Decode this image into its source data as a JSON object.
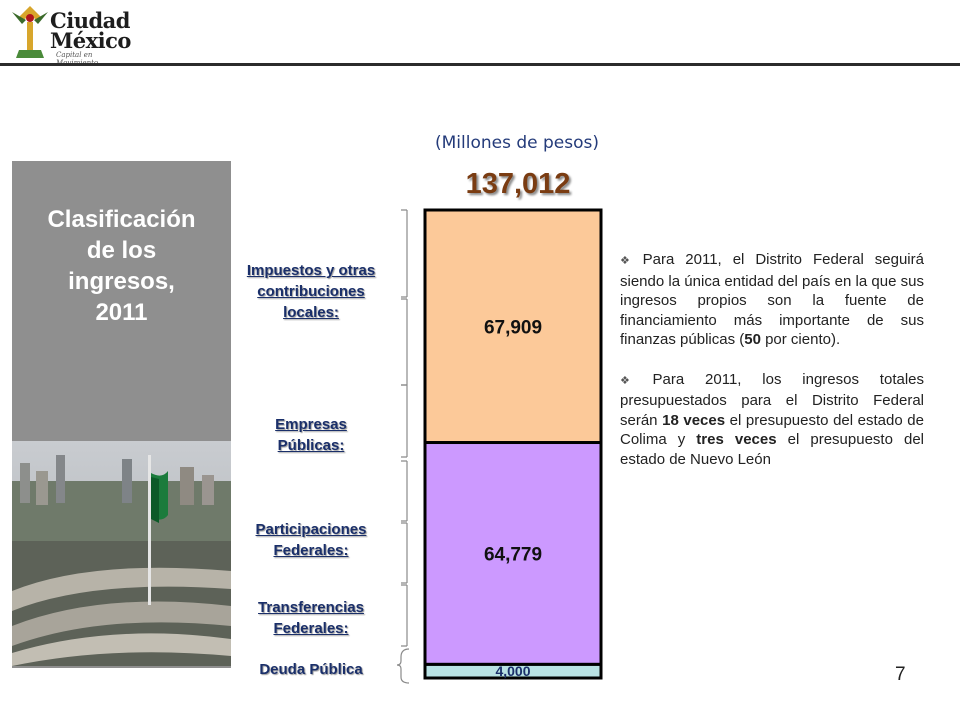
{
  "logo": {
    "line1": "Ciudad",
    "line2": "México",
    "tagline": "Capital en Movimiento"
  },
  "left_title": {
    "line1": "Clasificación",
    "line2": "de los",
    "line3": "ingresos,",
    "line4": "2011"
  },
  "units": "(Millones de pesos)",
  "total": "137,012",
  "labels": {
    "impuestos": {
      "line1": "Impuestos y otras",
      "line2": "contribuciones",
      "line3": "locales:"
    },
    "empresas": {
      "line1": "Empresas",
      "line2": "Públicas:"
    },
    "participaciones": {
      "line1": "Participaciones",
      "line2": "Federales:"
    },
    "transferencias": {
      "line1": "Transferencias",
      "line2": "Federales:"
    },
    "deuda": {
      "line1": "Deuda Pública"
    }
  },
  "chart_data": {
    "type": "bar",
    "stacked": true,
    "total": 137012,
    "segments": [
      {
        "value": 4000,
        "label": "4,000",
        "color": "#b9e2e4"
      },
      {
        "value": 64779,
        "label": "64,779",
        "color": "#cc99ff"
      },
      {
        "value": 67909,
        "label": "67,909",
        "color": "#fcc999"
      }
    ]
  },
  "bullets": [
    {
      "parts": [
        "Para 2011, el Distrito Federal seguirá siendo la única entidad del país en la que sus ingresos propios son la fuente de financiamiento más importante de sus finanzas públicas (",
        "50",
        " por ciento)."
      ]
    },
    {
      "parts": [
        "Para 2011, los ingresos totales presupuestados para el Distrito Federal serán ",
        "18 veces",
        " el presupuesto del estado de Colima y ",
        "tres veces",
        " el presupuesto del estado de Nuevo León"
      ]
    }
  ],
  "page_number": "7"
}
